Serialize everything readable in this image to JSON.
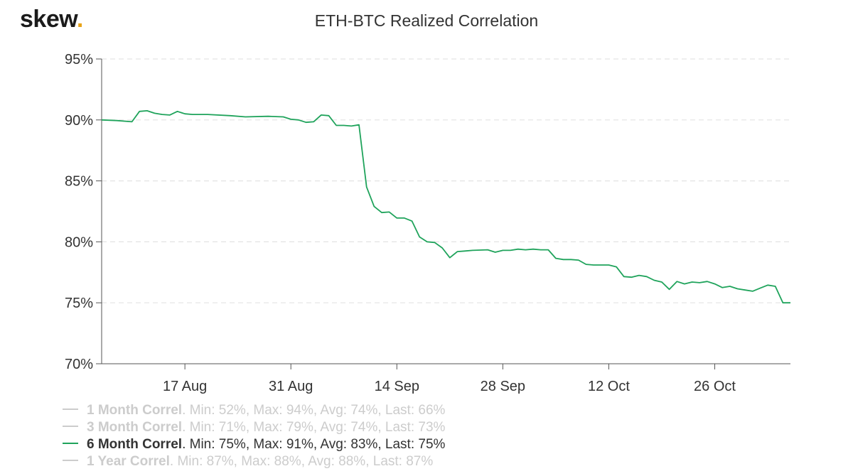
{
  "logo": {
    "text": "skew",
    "dot": ".",
    "dot_color": "#e8a317"
  },
  "chart_data": {
    "type": "line",
    "title": "ETH-BTC Realized Correlation",
    "xlabel": "",
    "ylabel": "",
    "ylim": [
      70,
      95
    ],
    "y_ticks": [
      95,
      90,
      85,
      80,
      75,
      70
    ],
    "y_tick_labels": [
      "95%",
      "90%",
      "85%",
      "80%",
      "75%",
      "70%"
    ],
    "x_ticks": [
      "2020-08-17",
      "2020-08-31",
      "2020-09-14",
      "2020-09-28",
      "2020-10-12",
      "2020-10-26"
    ],
    "x_tick_labels": [
      "17 Aug",
      "31 Aug",
      "14 Sep",
      "28 Sep",
      "12 Oct",
      "26 Oct"
    ],
    "xlim": [
      "2020-08-06",
      "2020-11-05"
    ],
    "grid": true,
    "legend_position": "bottom-left",
    "series_color": "#1fa35b",
    "series": [
      {
        "name": "6 Month Correl",
        "x": [
          "2020-08-06",
          "2020-08-08",
          "2020-08-10",
          "2020-08-11",
          "2020-08-12",
          "2020-08-13",
          "2020-08-14",
          "2020-08-15",
          "2020-08-16",
          "2020-08-17",
          "2020-08-18",
          "2020-08-20",
          "2020-08-23",
          "2020-08-25",
          "2020-08-28",
          "2020-08-30",
          "2020-08-31",
          "2020-09-01",
          "2020-09-02",
          "2020-09-03",
          "2020-09-04",
          "2020-09-05",
          "2020-09-06",
          "2020-09-07",
          "2020-09-08",
          "2020-09-09",
          "2020-09-10",
          "2020-09-11",
          "2020-09-12",
          "2020-09-13",
          "2020-09-14",
          "2020-09-15",
          "2020-09-16",
          "2020-09-17",
          "2020-09-18",
          "2020-09-19",
          "2020-09-20",
          "2020-09-21",
          "2020-09-22",
          "2020-09-23",
          "2020-09-24",
          "2020-09-26",
          "2020-09-27",
          "2020-09-28",
          "2020-09-29",
          "2020-09-30",
          "2020-10-01",
          "2020-10-02",
          "2020-10-03",
          "2020-10-04",
          "2020-10-05",
          "2020-10-06",
          "2020-10-07",
          "2020-10-08",
          "2020-10-09",
          "2020-10-10",
          "2020-10-12",
          "2020-10-13",
          "2020-10-14",
          "2020-10-15",
          "2020-10-16",
          "2020-10-17",
          "2020-10-18",
          "2020-10-19",
          "2020-10-20",
          "2020-10-21",
          "2020-10-22",
          "2020-10-23",
          "2020-10-24",
          "2020-10-25",
          "2020-10-26",
          "2020-10-27",
          "2020-10-28",
          "2020-10-29",
          "2020-10-30",
          "2020-10-31",
          "2020-11-01",
          "2020-11-02",
          "2020-11-03",
          "2020-11-04",
          "2020-11-05"
        ],
        "values": [
          90.0,
          89.95,
          89.85,
          90.7,
          90.75,
          90.55,
          90.45,
          90.4,
          90.7,
          90.5,
          90.45,
          90.45,
          90.35,
          90.25,
          90.3,
          90.25,
          90.05,
          90.0,
          89.8,
          89.85,
          90.4,
          90.35,
          89.55,
          89.55,
          89.5,
          89.6,
          84.5,
          82.9,
          82.4,
          82.45,
          81.95,
          81.95,
          81.7,
          80.4,
          80.0,
          79.95,
          79.5,
          78.7,
          79.2,
          79.25,
          79.3,
          79.35,
          79.15,
          79.3,
          79.3,
          79.4,
          79.35,
          79.4,
          79.35,
          79.35,
          78.65,
          78.55,
          78.55,
          78.5,
          78.15,
          78.1,
          78.1,
          77.95,
          77.15,
          77.1,
          77.25,
          77.15,
          76.85,
          76.7,
          76.1,
          76.75,
          76.55,
          76.7,
          76.65,
          76.75,
          76.55,
          76.25,
          76.35,
          76.15,
          76.05,
          75.95,
          76.2,
          76.45,
          76.35,
          75.0,
          75.0
        ]
      }
    ]
  },
  "legend": [
    {
      "name": "1 Month Correl",
      "stats": ". Min: 52%, Max: 94%, Avg: 74%, Last: 66%",
      "active": false
    },
    {
      "name": "3 Month Correl",
      "stats": ". Min: 71%, Max: 79%, Avg: 74%, Last: 73%",
      "active": false
    },
    {
      "name": "6 Month Correl",
      "stats": ". Min: 75%, Max: 91%, Avg: 83%, Last: 75%",
      "active": true
    },
    {
      "name": "1 Year Correl",
      "stats": ". Min: 87%, Max: 88%, Avg: 88%, Last: 87%",
      "active": false
    }
  ]
}
